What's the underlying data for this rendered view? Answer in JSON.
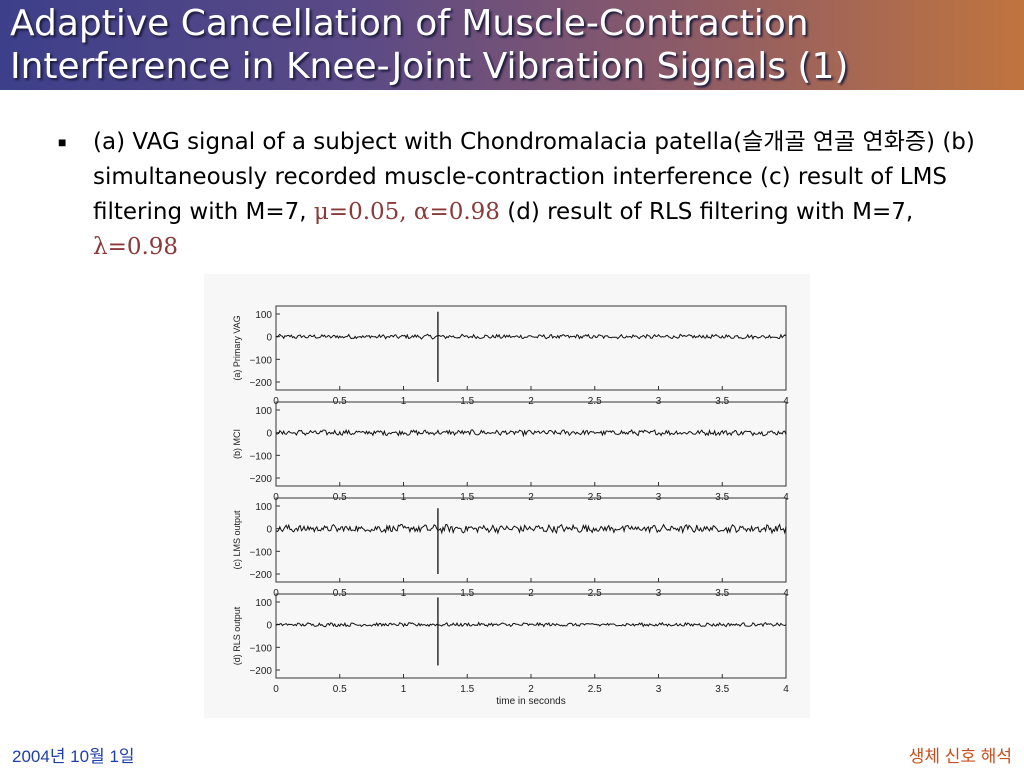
{
  "slide": {
    "title_line1": "Adaptive Cancellation of Muscle-Contraction",
    "title_line2": "Interference in Knee-Joint Vibration Signals (1)",
    "bullet_text_a": "(a) VAG signal of a subject with Chondromalacia patella(슬개골 연골 연화증) (b) simultaneously recorded muscle-contraction interference (c) result of LMS filtering with M=7, ",
    "bullet_param_lms": "μ=0.05, α=0.98",
    "bullet_text_b": " (d) result of RLS filtering with M=7, ",
    "bullet_param_rls": "λ=0.98",
    "footer_date": "2004년 10월 1일",
    "footer_course": "생체 신호 해석"
  },
  "colors": {
    "title_gradient_start": "#3d3f8a",
    "title_gradient_end": "#c0743e",
    "footer_date": "#1f3fa8",
    "footer_course": "#c8501e",
    "param_text": "#8a3a3a"
  },
  "chart_data": [
    {
      "type": "line",
      "ylabel": "(a) Primary VAG",
      "xlabel": "",
      "xlim": [
        0,
        4
      ],
      "ylim": [
        -200,
        100
      ],
      "yticks": [
        100,
        0,
        -100,
        -200
      ],
      "xticks": [
        0,
        0.5,
        1,
        1.5,
        2,
        2.5,
        3,
        3.5,
        4
      ],
      "noise_amplitude": 8,
      "spike": {
        "x": 1.27,
        "y_min": -200,
        "y_max": 110
      }
    },
    {
      "type": "line",
      "ylabel": "(b) MCI",
      "xlabel": "",
      "xlim": [
        0,
        4
      ],
      "ylim": [
        -200,
        100
      ],
      "yticks": [
        100,
        0,
        -100,
        -200
      ],
      "xticks": [
        0,
        0.5,
        1,
        1.5,
        2,
        2.5,
        3,
        3.5,
        4
      ],
      "noise_amplitude": 10,
      "spike": null
    },
    {
      "type": "line",
      "ylabel": "(c) LMS output",
      "xlabel": "",
      "xlim": [
        0,
        4
      ],
      "ylim": [
        -200,
        100
      ],
      "yticks": [
        100,
        0,
        -100,
        -200
      ],
      "xticks": [
        0,
        0.5,
        1,
        1.5,
        2,
        2.5,
        3,
        3.5,
        4
      ],
      "noise_amplitude": 15,
      "spike": {
        "x": 1.27,
        "y_min": -200,
        "y_max": 90
      }
    },
    {
      "type": "line",
      "ylabel": "(d) RLS output",
      "xlabel": "time in seconds",
      "xlim": [
        0,
        4
      ],
      "ylim": [
        -200,
        100
      ],
      "yticks": [
        100,
        0,
        -100,
        -200
      ],
      "xticks": [
        0,
        0.5,
        1,
        1.5,
        2,
        2.5,
        3,
        3.5,
        4
      ],
      "noise_amplitude": 7,
      "spike": {
        "x": 1.27,
        "y_min": -180,
        "y_max": 120
      }
    }
  ]
}
